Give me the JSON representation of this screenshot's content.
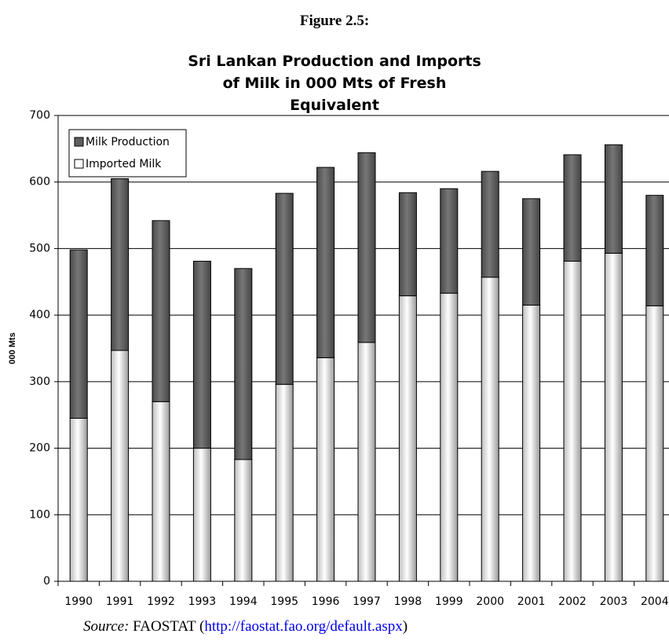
{
  "figure": "Figure 2.5:",
  "chart_data": {
    "type": "stacked_bar",
    "title": "Sri Lankan Production and Imports of Milk in 000 Mts of Fresh Equivalent",
    "y_label": "000 Mts",
    "categories": [
      "1990",
      "1991",
      "1992",
      "1993",
      "1994",
      "1995",
      "1996",
      "1997",
      "1998",
      "1999",
      "2000",
      "2001",
      "2002",
      "2003",
      "2004"
    ],
    "series": [
      {
        "name": "Imported Milk",
        "color": "#ffffff",
        "values": [
          245,
          347,
          270,
          200,
          183,
          296,
          336,
          359,
          429,
          433,
          457,
          415,
          481,
          493,
          414
        ]
      },
      {
        "name": "Milk Production",
        "color": "#606060",
        "values": [
          253,
          258,
          272,
          281,
          287,
          287,
          286,
          285,
          155,
          157,
          159,
          160,
          160,
          163,
          166
        ]
      }
    ],
    "ylim": [
      0,
      700
    ],
    "yticks": [
      0,
      100,
      200,
      300,
      400,
      500,
      600,
      700
    ],
    "grid": true
  },
  "source": {
    "label": "Source:",
    "text": "FAOSTAT (",
    "url": "http://faostat.fao.org/default.aspx",
    "close": ")"
  }
}
